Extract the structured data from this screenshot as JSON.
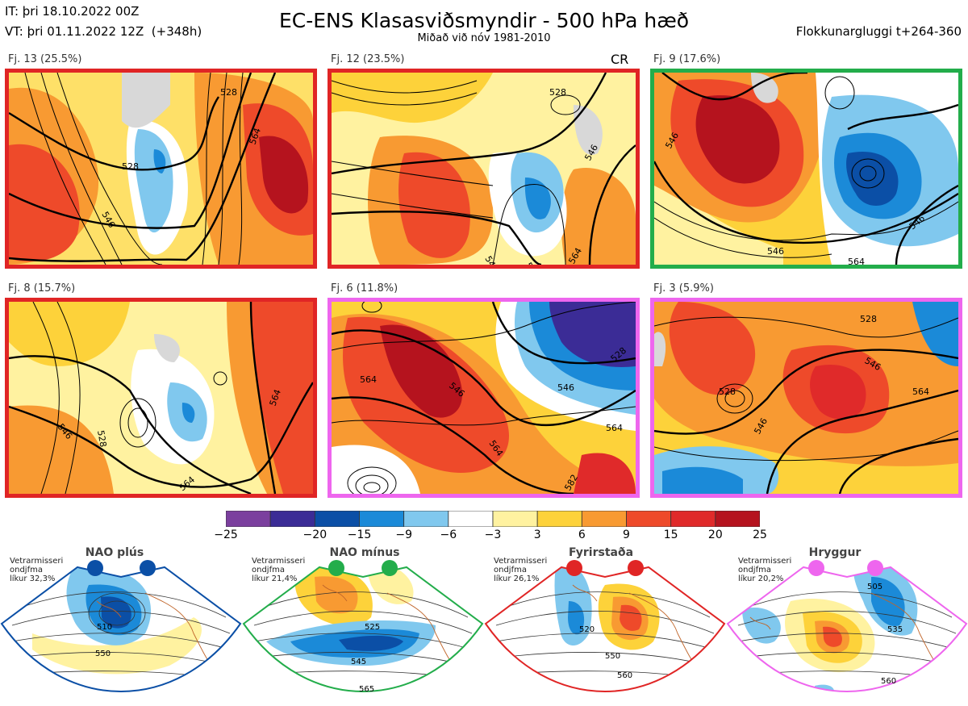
{
  "header": {
    "it_line": "IT: þri 18.10.2022 00Z",
    "vt_line": "VT: þri 01.11.2022 12Z  (+348h)",
    "title": "EC-ENS Klasasviðsmyndir - 500 hPa hæð",
    "subtitle": "Miðað við nóv 1981-2010",
    "window": "Flokkunargluggi t+264-360"
  },
  "panels": [
    {
      "label": "Fj. 13 (25.5%)",
      "border_color": "#e02525",
      "regime": "Fyrirstaða",
      "contour_labels": [
        "52",
        "528",
        "546",
        "564",
        "528",
        "546",
        "564"
      ]
    },
    {
      "label": "Fj. 12 (23.5%)",
      "border_color": "#e02525",
      "regime": "Fyrirstaða",
      "tag": "CR",
      "contour_labels": [
        "528",
        "546",
        "546",
        "546",
        "564"
      ]
    },
    {
      "label": "Fj. 9 (17.6%)",
      "border_color": "#23ad4b",
      "regime": "NAO mínus",
      "contour_labels": [
        "546",
        "546",
        "546",
        "528",
        "546",
        "564"
      ]
    },
    {
      "label": "Fj. 8 (15.7%)",
      "border_color": "#e02525",
      "regime": "Fyrirstaða",
      "contour_labels": [
        "528",
        "546",
        "546",
        "564",
        "564",
        "528"
      ]
    },
    {
      "label": "Fj. 6 (11.8%)",
      "border_color": "#ee66ee",
      "regime": "Hryggur",
      "contour_labels": [
        "546",
        "564",
        "546",
        "564",
        "528",
        "546",
        "564",
        "528"
      ]
    },
    {
      "label": "Fj. 3 (5.9%)",
      "border_color": "#ee66ee",
      "regime": "Hryggur",
      "contour_labels": [
        "528",
        "546",
        "528",
        "564",
        "546"
      ]
    }
  ],
  "colorbar": {
    "colors": [
      "#7b3f9e",
      "#3b2c96",
      "#0b4fa6",
      "#1b8ad8",
      "#80c8ee",
      "#ffffff",
      "#fff2a0",
      "#fdd23a",
      "#f89a32",
      "#ee4a2a",
      "#e02a2a",
      "#b5131e"
    ],
    "labels": [
      "−25",
      "−20",
      "−15",
      "−9",
      "−6",
      "−3",
      "3",
      "6",
      "9",
      "15",
      "20",
      "25"
    ]
  },
  "regimes": [
    {
      "name": "NAO plús",
      "color": "#0b4fa6",
      "note": "Vetrarmisseri\nondjfma\nlíkur 32,3%",
      "contours": [
        "510",
        "550"
      ]
    },
    {
      "name": "NAO mínus",
      "color": "#23ad4b",
      "note": "Vetrarmisseri\nondjfma\nlíkur 21,4%",
      "contours": [
        "525",
        "545",
        "565"
      ]
    },
    {
      "name": "Fyrirstaða",
      "color": "#e02525",
      "note": "Vetrarmisseri\nondjfma\nlíkur 26,1%",
      "contours": [
        "520",
        "550",
        "560"
      ]
    },
    {
      "name": "Hryggur",
      "color": "#ee66ee",
      "note": "Vetrarmisseri\nondjfma\nlíkur 20,2%",
      "contours": [
        "505",
        "535",
        "560"
      ]
    }
  ]
}
